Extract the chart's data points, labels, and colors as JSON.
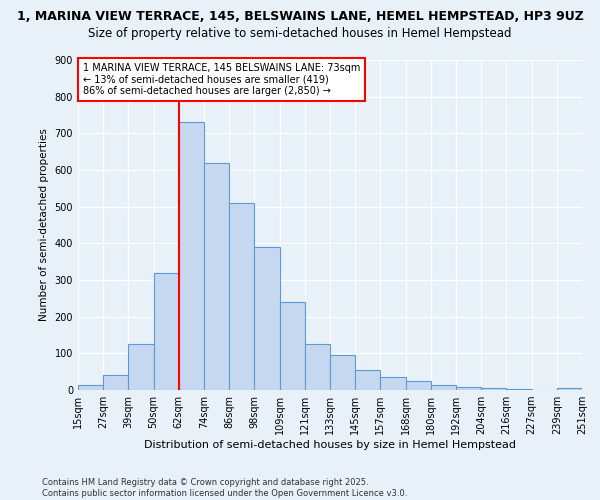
{
  "title": "1, MARINA VIEW TERRACE, 145, BELSWAINS LANE, HEMEL HEMPSTEAD, HP3 9UZ",
  "subtitle": "Size of property relative to semi-detached houses in Hemel Hempstead",
  "xlabel": "Distribution of semi-detached houses by size in Hemel Hempstead",
  "ylabel": "Number of semi-detached properties",
  "footnote1": "Contains HM Land Registry data © Crown copyright and database right 2025.",
  "footnote2": "Contains public sector information licensed under the Open Government Licence v3.0.",
  "bar_labels": [
    "15sqm",
    "27sqm",
    "39sqm",
    "50sqm",
    "62sqm",
    "74sqm",
    "86sqm",
    "98sqm",
    "109sqm",
    "121sqm",
    "133sqm",
    "145sqm",
    "157sqm",
    "168sqm",
    "180sqm",
    "192sqm",
    "204sqm",
    "216sqm",
    "227sqm",
    "239sqm",
    "251sqm"
  ],
  "bar_values": [
    15,
    40,
    125,
    320,
    730,
    620,
    510,
    390,
    240,
    125,
    95,
    55,
    35,
    25,
    15,
    8,
    5,
    2,
    0,
    5
  ],
  "bar_color": "#c5d8f0",
  "bar_edge_color": "#5b9bd5",
  "vline_x": 4,
  "vline_color": "red",
  "annotation_text": "1 MARINA VIEW TERRACE, 145 BELSWAINS LANE: 73sqm\n← 13% of semi-detached houses are smaller (419)\n86% of semi-detached houses are larger (2,850) →",
  "annotation_box_color": "white",
  "annotation_box_edge": "red",
  "ylim": [
    0,
    900
  ],
  "yticks": [
    0,
    100,
    200,
    300,
    400,
    500,
    600,
    700,
    800,
    900
  ],
  "background_color": "#e8f0f8",
  "grid_color": "white",
  "title_fontsize": 9,
  "subtitle_fontsize": 8.5
}
